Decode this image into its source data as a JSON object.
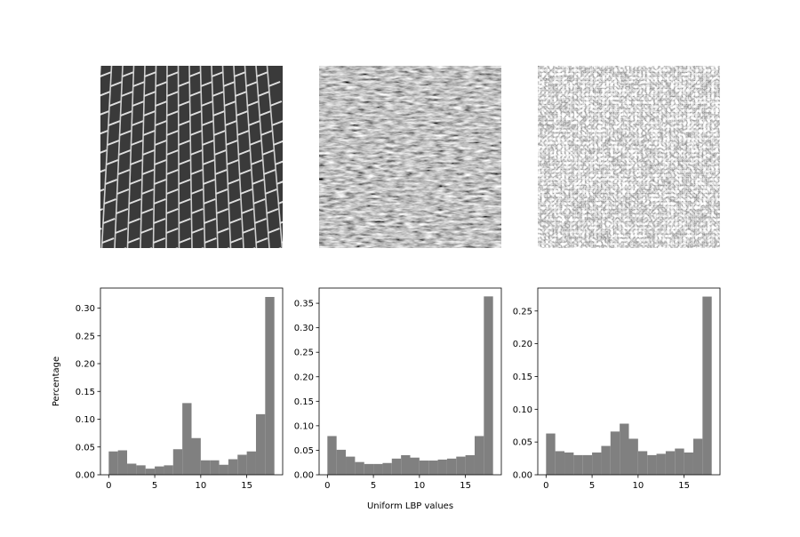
{
  "figure": {
    "texture_images": [
      "brick",
      "grass",
      "gravel"
    ]
  },
  "chart_data": [
    {
      "type": "bar",
      "ylabel": "Percentage",
      "xlabel": "",
      "bin_edges": [
        0,
        1,
        2,
        3,
        4,
        5,
        6,
        7,
        8,
        9,
        10,
        11,
        12,
        13,
        14,
        15,
        16,
        17,
        18
      ],
      "values": [
        0.042,
        0.044,
        0.02,
        0.017,
        0.011,
        0.015,
        0.017,
        0.046,
        0.129,
        0.066,
        0.026,
        0.026,
        0.018,
        0.028,
        0.036,
        0.042,
        0.109,
        0.32
      ],
      "xlim": [
        -0.9,
        18.9
      ],
      "ylim": [
        0,
        0.336
      ],
      "xticks": [
        0,
        5,
        10,
        15
      ],
      "yticks": [
        0.0,
        0.05,
        0.1,
        0.15,
        0.2,
        0.25,
        0.3
      ],
      "bar_color": "#808080",
      "grid": false
    },
    {
      "type": "bar",
      "ylabel": "",
      "xlabel": "Uniform LBP values",
      "bin_edges": [
        0,
        1,
        2,
        3,
        4,
        5,
        6,
        7,
        8,
        9,
        10,
        11,
        12,
        13,
        14,
        15,
        16,
        17,
        18
      ],
      "values": [
        0.079,
        0.051,
        0.037,
        0.026,
        0.022,
        0.022,
        0.024,
        0.033,
        0.04,
        0.035,
        0.029,
        0.029,
        0.031,
        0.033,
        0.037,
        0.04,
        0.079,
        0.364
      ],
      "xlim": [
        -0.9,
        18.9
      ],
      "ylim": [
        0,
        0.381
      ],
      "xticks": [
        0,
        5,
        10,
        15
      ],
      "yticks": [
        0.0,
        0.05,
        0.1,
        0.15,
        0.2,
        0.25,
        0.3,
        0.35
      ],
      "bar_color": "#808080",
      "grid": false
    },
    {
      "type": "bar",
      "ylabel": "",
      "xlabel": "",
      "bin_edges": [
        0,
        1,
        2,
        3,
        4,
        5,
        6,
        7,
        8,
        9,
        10,
        11,
        12,
        13,
        14,
        15,
        16,
        17,
        18
      ],
      "values": [
        0.063,
        0.036,
        0.034,
        0.03,
        0.03,
        0.034,
        0.044,
        0.066,
        0.078,
        0.055,
        0.036,
        0.03,
        0.032,
        0.036,
        0.04,
        0.034,
        0.055,
        0.272
      ],
      "xlim": [
        -0.9,
        18.9
      ],
      "ylim": [
        0,
        0.285
      ],
      "xticks": [
        0,
        5,
        10,
        15
      ],
      "yticks": [
        0.0,
        0.05,
        0.1,
        0.15,
        0.2,
        0.25
      ],
      "bar_color": "#808080",
      "grid": false
    }
  ]
}
